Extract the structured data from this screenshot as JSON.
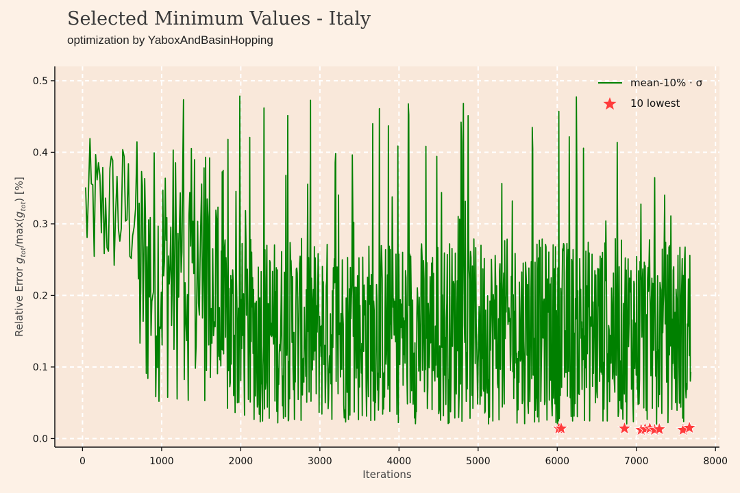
{
  "chart_data": {
    "type": "line",
    "title": "Selected Minimum Values - Italy",
    "subtitle": "optimization by YaboxAndBasinHopping",
    "xlabel": "Iterations",
    "ylabel": "Relative Error g_tot/max(g_tot) [%]",
    "ylabel_parts": {
      "before": "Relative Error ",
      "g1": "g",
      "sub1": "tot",
      "mid": "/max(",
      "g2": "g",
      "sub2": "tot",
      "after": ") [%]"
    },
    "xlim": [
      -350,
      8050
    ],
    "ylim": [
      -0.012,
      0.52
    ],
    "xticks": [
      0,
      1000,
      2000,
      3000,
      4000,
      5000,
      6000,
      7000,
      8000
    ],
    "yticks": [
      0.0,
      0.1,
      0.2,
      0.3,
      0.4,
      0.5
    ],
    "xtick_labels": [
      "0",
      "1000",
      "2000",
      "3000",
      "4000",
      "5000",
      "6000",
      "7000",
      "8000"
    ],
    "ytick_labels": [
      "0.0",
      "0.1",
      "0.2",
      "0.3",
      "0.4",
      "0.5"
    ],
    "grid": true,
    "legend_position": "top-right",
    "series": [
      {
        "name": "mean-10% · σ",
        "kind": "line",
        "color": "#008000",
        "x_range": [
          40,
          7690
        ],
        "description_of_shape": "highly oscillating error; early values 0.25-0.42, dense band ~0.03-0.30 after iteration 1700, occasional spikes to ~0.49"
      },
      {
        "name": "10 lowest",
        "kind": "scatter",
        "marker": "star",
        "color": "#ff3b3b",
        "points": [
          [
            6020,
            0.014
          ],
          [
            6050,
            0.014
          ],
          [
            6850,
            0.014
          ],
          [
            7060,
            0.012
          ],
          [
            7110,
            0.013
          ],
          [
            7170,
            0.014
          ],
          [
            7230,
            0.012
          ],
          [
            7290,
            0.013
          ],
          [
            7590,
            0.012
          ],
          [
            7670,
            0.015
          ]
        ]
      }
    ]
  },
  "colors": {
    "background": "#fdf1e6",
    "plot_background": "#f9e8da",
    "grid": "#ffffff",
    "line": "#008000",
    "marker": "#ff3b3b"
  }
}
